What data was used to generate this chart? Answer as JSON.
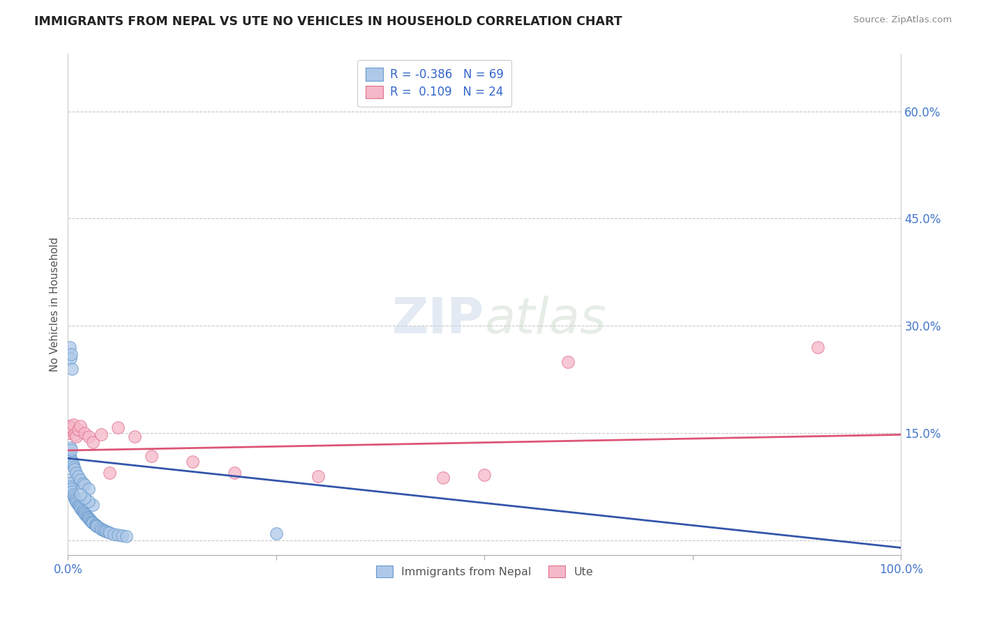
{
  "title": "IMMIGRANTS FROM NEPAL VS UTE NO VEHICLES IN HOUSEHOLD CORRELATION CHART",
  "source": "Source: ZipAtlas.com",
  "ylabel": "No Vehicles in Household",
  "y_ticks": [
    0.0,
    0.15,
    0.3,
    0.45,
    0.6
  ],
  "y_tick_labels": [
    "",
    "15.0%",
    "30.0%",
    "45.0%",
    "60.0%"
  ],
  "x_range": [
    0.0,
    1.0
  ],
  "y_range": [
    -0.02,
    0.68
  ],
  "legend_label_blue": "Immigrants from Nepal",
  "legend_label_pink": "Ute",
  "blue_color": "#adc8e8",
  "pink_color": "#f5b8c8",
  "blue_edge": "#6699cc",
  "pink_edge": "#e07090",
  "trend_blue": "#3355aa",
  "trend_pink": "#dd5577",
  "nepal_x": [
    0.001,
    0.002,
    0.003,
    0.004,
    0.005,
    0.006,
    0.007,
    0.008,
    0.009,
    0.01,
    0.011,
    0.012,
    0.013,
    0.014,
    0.015,
    0.016,
    0.017,
    0.018,
    0.019,
    0.02,
    0.021,
    0.022,
    0.023,
    0.024,
    0.025,
    0.026,
    0.027,
    0.028,
    0.029,
    0.03,
    0.032,
    0.033,
    0.034,
    0.035,
    0.038,
    0.04,
    0.042,
    0.044,
    0.046,
    0.048,
    0.05,
    0.055,
    0.06,
    0.065,
    0.07,
    0.002,
    0.003,
    0.004,
    0.005,
    0.006,
    0.007,
    0.008,
    0.01,
    0.012,
    0.015,
    0.018,
    0.02,
    0.025,
    0.003,
    0.004,
    0.002,
    0.003,
    0.004,
    0.005,
    0.25,
    0.03,
    0.025,
    0.02,
    0.015
  ],
  "nepal_y": [
    0.085,
    0.08,
    0.075,
    0.072,
    0.068,
    0.065,
    0.062,
    0.059,
    0.057,
    0.055,
    0.053,
    0.051,
    0.049,
    0.048,
    0.046,
    0.044,
    0.042,
    0.041,
    0.039,
    0.038,
    0.036,
    0.035,
    0.033,
    0.032,
    0.031,
    0.029,
    0.028,
    0.027,
    0.026,
    0.025,
    0.023,
    0.022,
    0.021,
    0.02,
    0.018,
    0.016,
    0.015,
    0.014,
    0.013,
    0.012,
    0.011,
    0.009,
    0.008,
    0.007,
    0.006,
    0.118,
    0.115,
    0.112,
    0.109,
    0.106,
    0.103,
    0.1,
    0.095,
    0.09,
    0.085,
    0.08,
    0.078,
    0.072,
    0.13,
    0.127,
    0.27,
    0.255,
    0.26,
    0.24,
    0.01,
    0.05,
    0.055,
    0.06,
    0.065
  ],
  "ute_x": [
    0.001,
    0.002,
    0.003,
    0.005,
    0.006,
    0.008,
    0.01,
    0.012,
    0.015,
    0.02,
    0.025,
    0.03,
    0.04,
    0.05,
    0.06,
    0.08,
    0.1,
    0.15,
    0.2,
    0.3,
    0.45,
    0.5,
    0.6,
    0.9
  ],
  "ute_y": [
    0.15,
    0.16,
    0.155,
    0.158,
    0.162,
    0.148,
    0.145,
    0.155,
    0.16,
    0.15,
    0.145,
    0.138,
    0.148,
    0.095,
    0.158,
    0.145,
    0.118,
    0.11,
    0.095,
    0.09,
    0.088,
    0.092,
    0.25,
    0.27
  ]
}
